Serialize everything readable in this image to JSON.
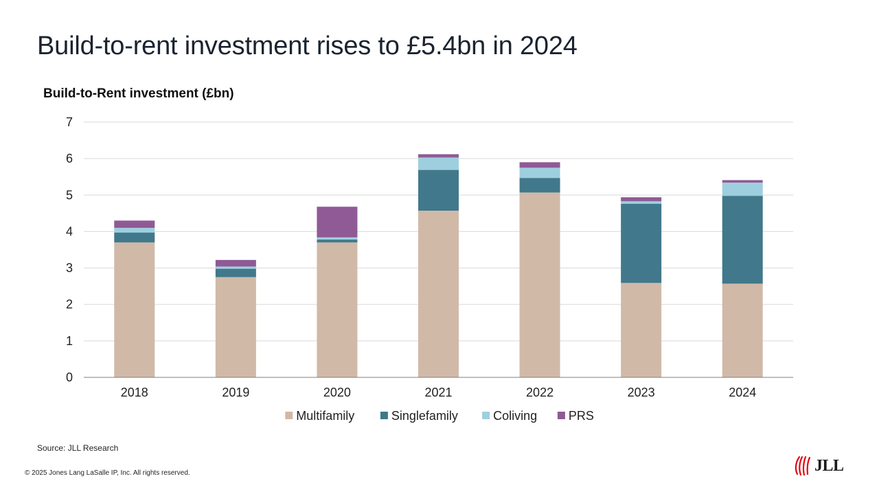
{
  "slide": {
    "title": "Build-to-rent investment rises to £5.4bn in 2024",
    "source": "Source: JLL Research",
    "copyright": "© 2025 Jones Lang LaSalle IP, Inc. All rights reserved.",
    "logo_text": "JLL",
    "logo_color": "#e30613"
  },
  "chart_data": {
    "type": "bar",
    "stacked": true,
    "title": "Build-to-Rent investment (£bn)",
    "xlabel": "",
    "ylabel": "",
    "ylim": [
      0,
      7
    ],
    "yticks": [
      0,
      1,
      2,
      3,
      4,
      5,
      6,
      7
    ],
    "grid": true,
    "legend_position": "bottom",
    "categories": [
      "2018",
      "2019",
      "2020",
      "2021",
      "2022",
      "2023",
      "2024"
    ],
    "series": [
      {
        "name": "Multifamily",
        "color": "#d1b9a8",
        "values": [
          3.7,
          2.75,
          3.7,
          4.57,
          5.07,
          2.59,
          2.57
        ]
      },
      {
        "name": "Singlefamily",
        "color": "#41788b",
        "values": [
          0.27,
          0.23,
          0.08,
          1.12,
          0.4,
          2.17,
          2.41
        ]
      },
      {
        "name": "Coliving",
        "color": "#9ecfde",
        "values": [
          0.13,
          0.06,
          0.06,
          0.34,
          0.28,
          0.07,
          0.36
        ]
      },
      {
        "name": "PRS",
        "color": "#8f5a95",
        "values": [
          0.2,
          0.18,
          0.84,
          0.09,
          0.15,
          0.11,
          0.07
        ]
      }
    ]
  }
}
